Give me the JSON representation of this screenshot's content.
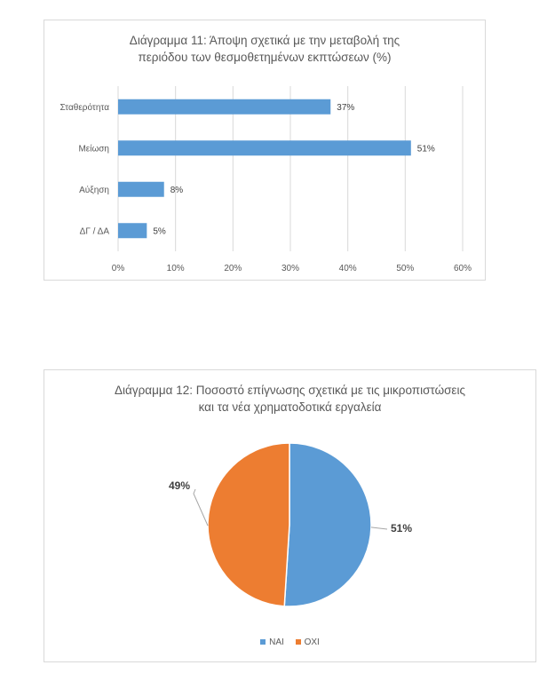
{
  "charts": [
    {
      "chart_data": {
        "type": "bar",
        "orientation": "horizontal",
        "title_lines": [
          "Διάγραμμα 11: Άποψη σχετικά με την μεταβολή της",
          "περιόδου των θεσμοθετημένων εκπτώσεων (%)"
        ],
        "categories": [
          "Σταθερότητα",
          "Μείωση",
          "Αύξηση",
          "ΔΓ / ΔΑ"
        ],
        "values": [
          37,
          51,
          8,
          5
        ],
        "value_labels": [
          "37%",
          "51%",
          "8%",
          "5%"
        ],
        "xlim": [
          0,
          60
        ],
        "xticks": [
          "0%",
          "10%",
          "20%",
          "30%",
          "40%",
          "50%",
          "60%"
        ],
        "color": "#5b9bd5",
        "grid": true
      }
    },
    {
      "chart_data": {
        "type": "pie",
        "title_lines": [
          "Διάγραμμα 12: Ποσοστό επίγνωσης σχετικά με τις μικροπιστώσεις",
          "και τα νέα χρηματοδοτικά εργαλεία"
        ],
        "labels": [
          "ΝΑΙ",
          "ΟΧΙ"
        ],
        "values": [
          51,
          49
        ],
        "value_labels": [
          "51%",
          "49%"
        ],
        "colors": [
          "#5b9bd5",
          "#ed7d31"
        ],
        "legend": "bottom"
      }
    }
  ]
}
